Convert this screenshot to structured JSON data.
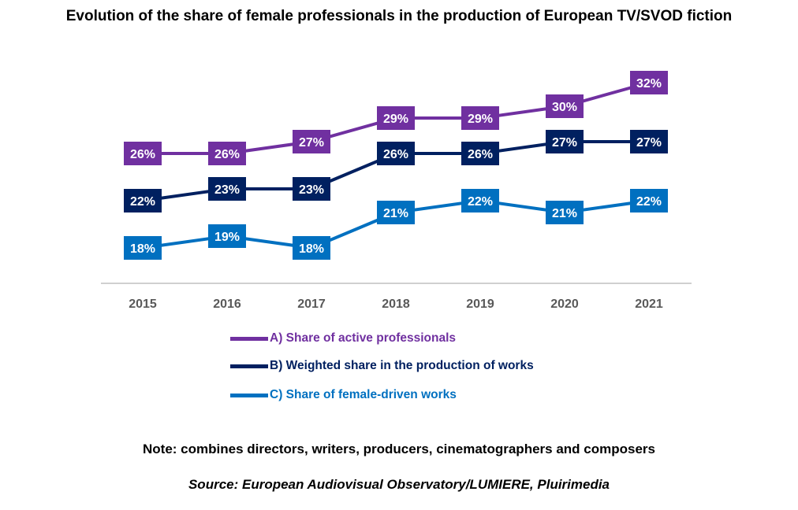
{
  "chart_data": {
    "type": "line",
    "title": "Evolution of the share of female professionals in the production of European TV/SVOD fiction",
    "x": [
      "2015",
      "2016",
      "2017",
      "2018",
      "2019",
      "2020",
      "2021"
    ],
    "series": [
      {
        "name": "A) Share of active professionals",
        "color": "#7030A0",
        "values": [
          26,
          26,
          27,
          29,
          29,
          30,
          32
        ],
        "labels": [
          "26%",
          "26%",
          "27%",
          "29%",
          "29%",
          "30%",
          "32%"
        ]
      },
      {
        "name": "B) Weighted share in the production of works",
        "color": "#002060",
        "values": [
          22,
          23,
          23,
          26,
          26,
          27,
          27
        ],
        "labels": [
          "22%",
          "23%",
          "23%",
          "26%",
          "26%",
          "27%",
          "27%"
        ]
      },
      {
        "name": "C) Share of female-driven works",
        "color": "#0070C0",
        "values": [
          18,
          19,
          18,
          21,
          22,
          21,
          22
        ],
        "labels": [
          "18%",
          "19%",
          "18%",
          "21%",
          "22%",
          "21%",
          "22%"
        ]
      }
    ],
    "xlabel": "",
    "ylabel": "",
    "unit": "%",
    "legend_position": "bottom",
    "grid": false
  },
  "note": "Note: combines directors, writers, producers, cinematographers and composers",
  "source": "Source: European Audiovisual Observatory/LUMIERE, Pluirimedia"
}
